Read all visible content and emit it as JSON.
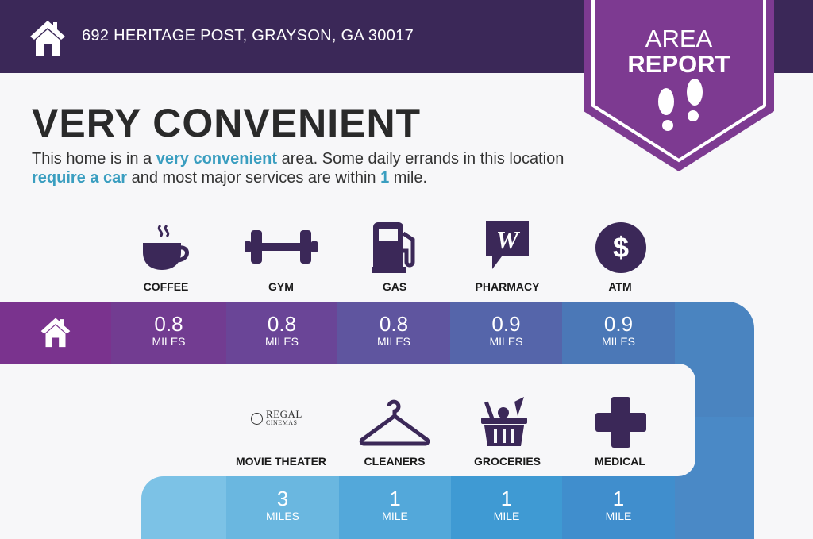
{
  "header": {
    "address": "692 HERITAGE POST, GRAYSON, GA 30017",
    "badge_line1": "AREA",
    "badge_line2": "REPORT"
  },
  "summary": {
    "title": "VERY CONVENIENT",
    "p1": "This home is in a ",
    "h1": "very convenient",
    "p2": " area. Some daily errands in this location ",
    "h2": "require a car",
    "p3": " and most major services are within ",
    "h3": "1",
    "p4": " mile."
  },
  "top": [
    {
      "label": "COFFEE",
      "value": "0.8",
      "unit": "MILES",
      "icon": "coffee-cup-icon"
    },
    {
      "label": "GYM",
      "value": "0.8",
      "unit": "MILES",
      "icon": "dumbbell-icon"
    },
    {
      "label": "GAS",
      "value": "0.8",
      "unit": "MILES",
      "icon": "gas-pump-icon"
    },
    {
      "label": "PHARMACY",
      "value": "0.9",
      "unit": "MILES",
      "icon": "walgreens-icon"
    },
    {
      "label": "ATM",
      "value": "0.9",
      "unit": "MILES",
      "icon": "dollar-icon"
    }
  ],
  "bottom": [
    {
      "label": "MOVIE THEATER",
      "value": "3",
      "unit": "MILES",
      "icon": "regal-cinemas-logo",
      "logo_text1": "REGAL",
      "logo_text2": "CINEMAS"
    },
    {
      "label": "CLEANERS",
      "value": "1",
      "unit": "MILE",
      "icon": "hanger-icon"
    },
    {
      "label": "GROCERIES",
      "value": "1",
      "unit": "MILE",
      "icon": "grocery-basket-icon"
    },
    {
      "label": "MEDICAL",
      "value": "1",
      "unit": "MILE",
      "icon": "medical-cross-icon"
    }
  ],
  "colors": {
    "header": "#3b2858",
    "badge": "#7d3a91",
    "icon": "#3b2858",
    "accent": "#3a9ec0"
  }
}
